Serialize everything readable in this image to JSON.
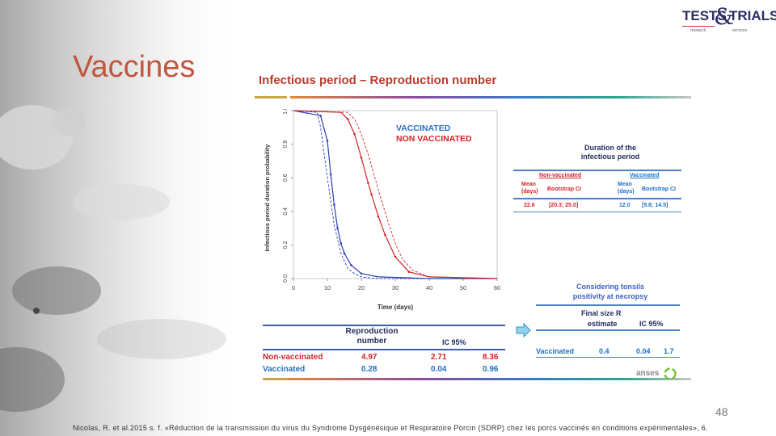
{
  "slide": {
    "title": "Vaccines",
    "page_number": "48"
  },
  "logo": {
    "word1": "TESTS",
    "amp": "&",
    "word2": "TRIALS",
    "sub1": "research",
    "sub2": "services"
  },
  "figure": {
    "title": "Infectious period – Reproduction number",
    "brand": "anses",
    "chart_data": {
      "type": "line",
      "title": "",
      "xlabel": "Time (days)",
      "ylabel": "Infectious period duration probability",
      "xlim": [
        0,
        60
      ],
      "ylim": [
        0,
        1
      ],
      "x_ticks": [
        "0",
        "10",
        "20",
        "30",
        "40",
        "50",
        "60"
      ],
      "y_ticks": [
        "0.0",
        "0.2",
        "0.4",
        "0.6",
        "0.8",
        "1.0"
      ],
      "legend": [
        "VACCINATED",
        "NON VACCINATED"
      ],
      "series": [
        {
          "name": "Vaccinated",
          "color": "#2a3fb0",
          "x": [
            0,
            8,
            10,
            11,
            12,
            13,
            14,
            15,
            17,
            20,
            25,
            40,
            60
          ],
          "y": [
            1.0,
            0.97,
            0.82,
            0.62,
            0.44,
            0.3,
            0.21,
            0.15,
            0.08,
            0.03,
            0.01,
            0.0,
            0.0
          ]
        },
        {
          "name": "Vaccinated (bootstrap band)",
          "color": "#2a3fb0",
          "x": [
            0,
            7,
            8,
            10,
            12,
            14,
            16,
            18,
            20,
            24,
            30,
            40,
            60
          ],
          "y": [
            1.0,
            0.99,
            0.9,
            0.6,
            0.32,
            0.15,
            0.06,
            0.03,
            0.01,
            0.0,
            0.0,
            0.0,
            0.0
          ]
        },
        {
          "name": "Non-vaccinated",
          "color": "#d2232a",
          "x": [
            0,
            14,
            16,
            18,
            20,
            22,
            23,
            25,
            27,
            30,
            34,
            40,
            60
          ],
          "y": [
            1.0,
            0.99,
            0.95,
            0.86,
            0.72,
            0.57,
            0.5,
            0.37,
            0.26,
            0.13,
            0.04,
            0.01,
            0.0
          ]
        },
        {
          "name": "Non-vaccinated (bootstrap band)",
          "color": "#d2232a",
          "x": [
            0,
            16,
            18,
            20,
            22,
            24,
            26,
            28,
            30,
            32,
            35,
            40,
            60
          ],
          "y": [
            1.0,
            0.99,
            0.95,
            0.86,
            0.74,
            0.6,
            0.46,
            0.33,
            0.21,
            0.12,
            0.05,
            0.01,
            0.0
          ]
        }
      ]
    },
    "duration_table": {
      "title_line1": "Duration of the",
      "title_line2": "infectious period",
      "nonvacc_header": "Non-vaccinated",
      "vacc_header": "Vaccinated",
      "mean_label": "Mean",
      "days_label": "(days)",
      "ci_label": "Bootstrap CI",
      "nonvacc_mean": "22.6",
      "nonvacc_ci": "[20.3; 25.0]",
      "vacc_mean": "12.0",
      "vacc_ci": "[9.8; 14.5]"
    },
    "tonsils": {
      "line1": "Considering tonsils",
      "line2": "positivity at necropsy",
      "final_size_label": "Final size R",
      "estimate_label": "estimate",
      "ic_label": "IC 95%",
      "row_label": "Vaccinated",
      "row_estimate": "0.4",
      "row_low": "0.04",
      "row_high": "1.7"
    },
    "reproduction_table": {
      "header_line1": "Reproduction",
      "header_line2": "number",
      "ic_label": "IC 95%",
      "rows": [
        {
          "label": "Non-vaccinated",
          "value": "4.97",
          "low": "2.71",
          "high": "8.36"
        },
        {
          "label": "Vaccinated",
          "value": "0.28",
          "low": "0.04",
          "high": "0.96"
        }
      ]
    }
  },
  "footnote": "Nicolas, R. et al.2015 s. f. «Réduction de la transmission du virus du Syndrome Dysgénésique et Respiratoire Porcin (SDRP) chez les porcs vaccinés en conditions expérimentales», 6."
}
